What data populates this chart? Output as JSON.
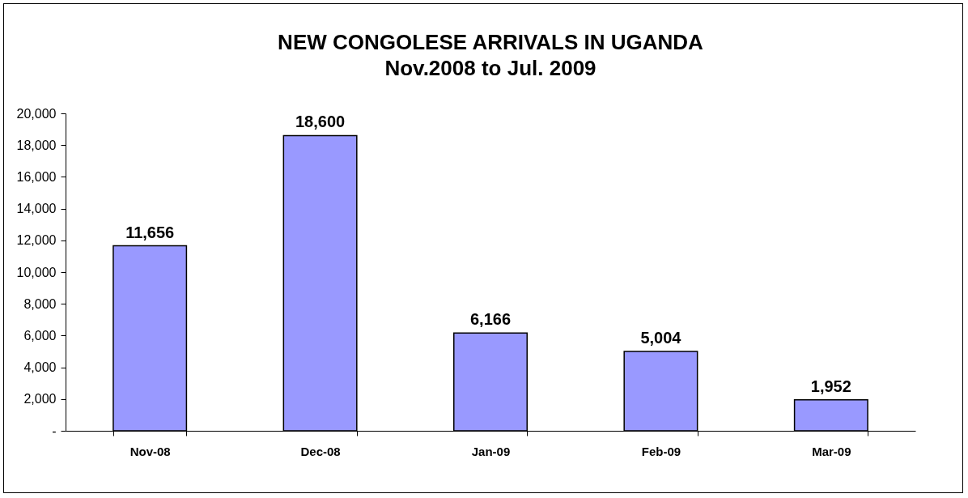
{
  "chart_data": {
    "type": "bar",
    "title": "NEW CONGOLESE ARRIVALS IN UGANDA",
    "subtitle": "Nov.2008 to Jul. 2009",
    "categories": [
      "Nov-08",
      "Dec-08",
      "Jan-09",
      "Feb-09",
      "Mar-09"
    ],
    "values": [
      11656,
      18600,
      6166,
      5004,
      1952
    ],
    "color": "#9999ff",
    "ylim": [
      0,
      20000
    ],
    "yticks": [
      {
        "value": 0,
        "label": "-"
      },
      {
        "value": 2000,
        "label": "2,000"
      },
      {
        "value": 4000,
        "label": "4,000"
      },
      {
        "value": 6000,
        "label": "6,000"
      },
      {
        "value": 8000,
        "label": "8,000"
      },
      {
        "value": 10000,
        "label": "10,000"
      },
      {
        "value": 12000,
        "label": "12,000"
      },
      {
        "value": 14000,
        "label": "14,000"
      },
      {
        "value": 16000,
        "label": "16,000"
      },
      {
        "value": 18000,
        "label": "18,000"
      },
      {
        "value": 20000,
        "label": "20,000"
      }
    ],
    "value_labels": [
      "11,656",
      "18,600",
      "6,166",
      "5,004",
      "1,952"
    ],
    "grid": false
  }
}
